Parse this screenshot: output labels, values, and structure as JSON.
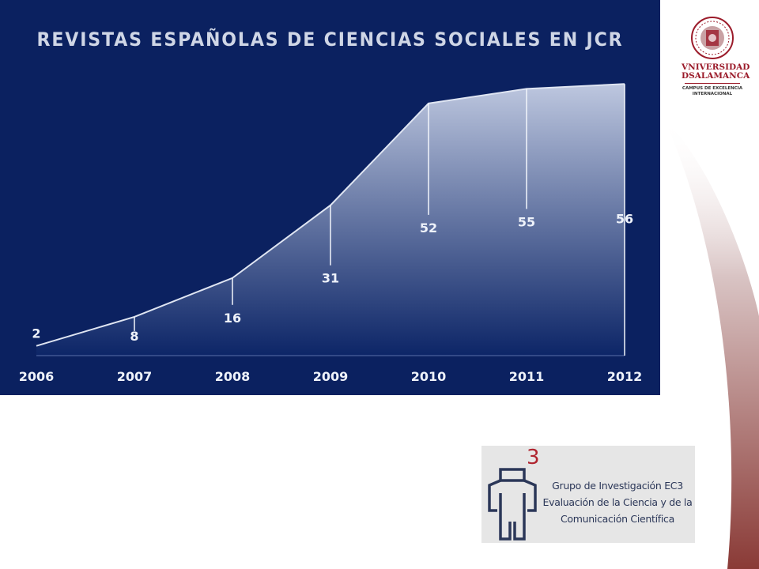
{
  "colors": {
    "panel_bg": "#0b2160",
    "area_top": "#c7d0e6",
    "area_bottom": "#0d2668",
    "text": "#eef2fa",
    "usal_red": "#9b1b2a",
    "ec3_red": "#b0242f",
    "ec3_text": "#2b3758"
  },
  "chart_data": {
    "type": "area",
    "title": "REVISTAS ESPAÑOLAS DE CIENCIAS SOCIALES EN JCR",
    "x": [
      "2006",
      "2007",
      "2008",
      "2009",
      "2010",
      "2011",
      "2012"
    ],
    "values": [
      2,
      8,
      16,
      31,
      52,
      55,
      56
    ],
    "data_labels": [
      "2",
      "8",
      "16",
      "31",
      "52",
      "55",
      "56"
    ],
    "xlabel": "",
    "ylabel": "",
    "ylim": [
      0,
      58
    ],
    "grid": false,
    "legend": "none"
  },
  "university_logo": {
    "name_line1": "VNIVERSIDAD",
    "name_line2": "DSALAMANCA",
    "subtitle_line1": "CAMPUS DE EXCELENCIA",
    "subtitle_line2": "INTERNACIONAL",
    "icon": "university-seal-icon"
  },
  "group_logo": {
    "superscript": "3",
    "line1": "Grupo de Investigación EC3",
    "line2": "Evaluación de la Ciencia y de la",
    "line3": "Comunicación Científica",
    "icon": "ec3-figure-icon"
  }
}
